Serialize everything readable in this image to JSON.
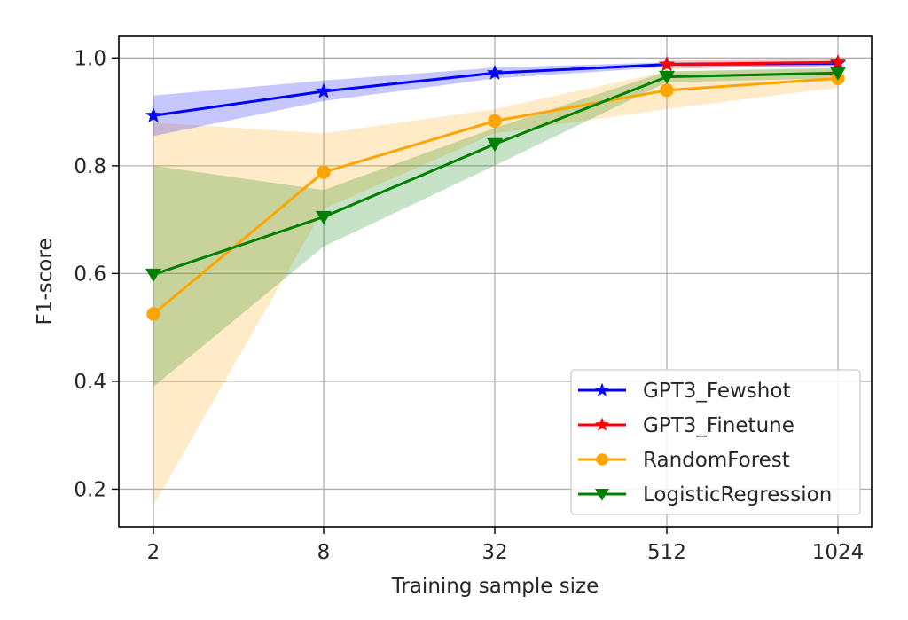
{
  "chart_data": {
    "type": "line",
    "xlabel": "Training sample size",
    "ylabel": "F1-score",
    "categories": [
      "2",
      "8",
      "32",
      "512",
      "1024"
    ],
    "x_scale": "categorical",
    "ylim": [
      0.13,
      1.04
    ],
    "yticks": [
      0.2,
      0.4,
      0.6,
      0.8,
      1.0
    ],
    "ytick_labels": [
      "0.2",
      "0.4",
      "0.6",
      "0.8",
      "1.0"
    ],
    "grid": true,
    "legend_position": "lower-right",
    "series": [
      {
        "name": "GPT3_Fewshot",
        "color": "#0000ff",
        "marker": "star",
        "x": [
          "2",
          "8",
          "32",
          "512",
          "1024"
        ],
        "values": [
          0.893,
          0.938,
          0.972,
          0.988,
          0.99
        ],
        "band_low": [
          0.855,
          0.92,
          0.962,
          0.983,
          0.985
        ],
        "band_high": [
          0.93,
          0.958,
          0.982,
          0.992,
          0.994
        ]
      },
      {
        "name": "GPT3_Finetune",
        "color": "#ff0000",
        "marker": "star",
        "x": [
          "512",
          "1024"
        ],
        "values": [
          0.988,
          0.992
        ],
        "band_low": [
          0.98,
          0.985
        ],
        "band_high": [
          0.995,
          0.998
        ]
      },
      {
        "name": "RandomForest",
        "color": "#ffa500",
        "marker": "circle",
        "x": [
          "2",
          "8",
          "32",
          "512",
          "1024"
        ],
        "values": [
          0.525,
          0.788,
          0.883,
          0.94,
          0.962
        ],
        "band_low": [
          0.17,
          0.72,
          0.86,
          0.905,
          0.945
        ],
        "band_high": [
          0.88,
          0.86,
          0.905,
          0.975,
          0.98
        ]
      },
      {
        "name": "LogisticRegression",
        "color": "#008000",
        "marker": "triangle-down",
        "x": [
          "2",
          "8",
          "32",
          "512",
          "1024"
        ],
        "values": [
          0.598,
          0.705,
          0.84,
          0.965,
          0.972
        ],
        "band_low": [
          0.39,
          0.65,
          0.8,
          0.955,
          0.962
        ],
        "band_high": [
          0.8,
          0.755,
          0.87,
          0.975,
          0.982
        ]
      }
    ]
  }
}
